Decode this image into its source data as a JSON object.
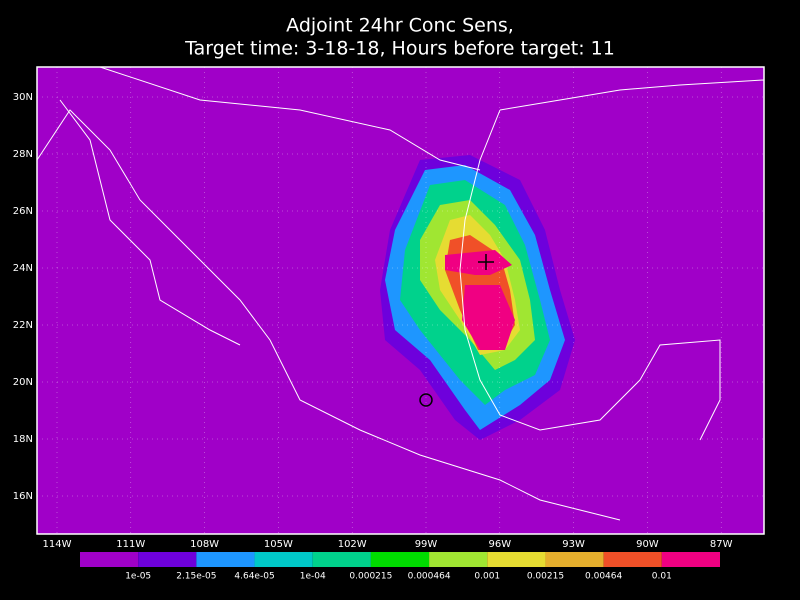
{
  "title": [
    "Adjoint 24hr Conc Sens,",
    "Target time: 3-18-18, Hours before target: 11"
  ],
  "x_labels": [
    "114W",
    "111W",
    "108W",
    "105W",
    "102W",
    "99W",
    "96W",
    "93W",
    "90W",
    "87W"
  ],
  "y_labels": [
    "30N",
    "28N",
    "26N",
    "24N",
    "22N",
    "20N",
    "18N",
    "16N"
  ],
  "colorbar": {
    "colors": [
      "#a000c8",
      "#6e00dc",
      "#1e96ff",
      "#00c8c8",
      "#00d28c",
      "#00dc00",
      "#a0e632",
      "#e6dc32",
      "#e6af2d",
      "#f05028",
      "#f00082"
    ],
    "labels": [
      "1e-05",
      "2.15e-05",
      "4.64e-05",
      "1e-04",
      "0.000215",
      "0.000464",
      "0.001",
      "0.00215",
      "0.00464",
      "0.01"
    ]
  }
}
